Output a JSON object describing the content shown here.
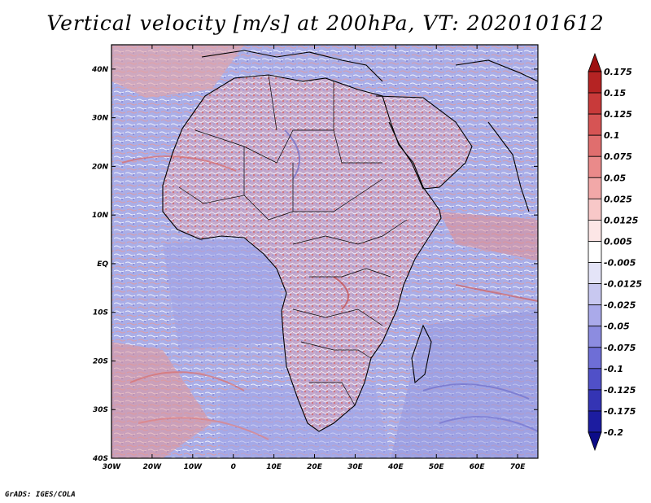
{
  "title": "Vertical velocity [m/s] at 200hPa, VT: 2020101612",
  "credit": "GrADS: IGES/COLA",
  "map": {
    "lat_ticks": [
      "40N",
      "30N",
      "20N",
      "10N",
      "EQ",
      "10S",
      "20S",
      "30S",
      "40S"
    ],
    "lon_ticks": [
      "30W",
      "20W",
      "10W",
      "0",
      "10E",
      "20E",
      "30E",
      "40E",
      "50E",
      "60E",
      "70E"
    ],
    "lon_range": [
      -30,
      75
    ],
    "lat_range": [
      -40,
      45
    ]
  },
  "colorbar": {
    "labels": [
      "0.175",
      "0.15",
      "0.125",
      "0.1",
      "0.075",
      "0.05",
      "0.025",
      "0.0125",
      "0.005",
      "-0.005",
      "-0.0125",
      "-0.025",
      "-0.05",
      "-0.075",
      "-0.1",
      "-0.125",
      "-0.175",
      "-0.2"
    ],
    "colors": [
      "#9e1010",
      "#b52323",
      "#c83a3a",
      "#d65454",
      "#e06e6e",
      "#ea8a8a",
      "#f2a8a8",
      "#f8c8c8",
      "#fce6e6",
      "#ffffff",
      "#e4e4f8",
      "#c8c8f0",
      "#aaaaea",
      "#8c8ce0",
      "#6e6ed6",
      "#5050c8",
      "#3434b4",
      "#1c1ca0",
      "#0c0c88"
    ]
  }
}
